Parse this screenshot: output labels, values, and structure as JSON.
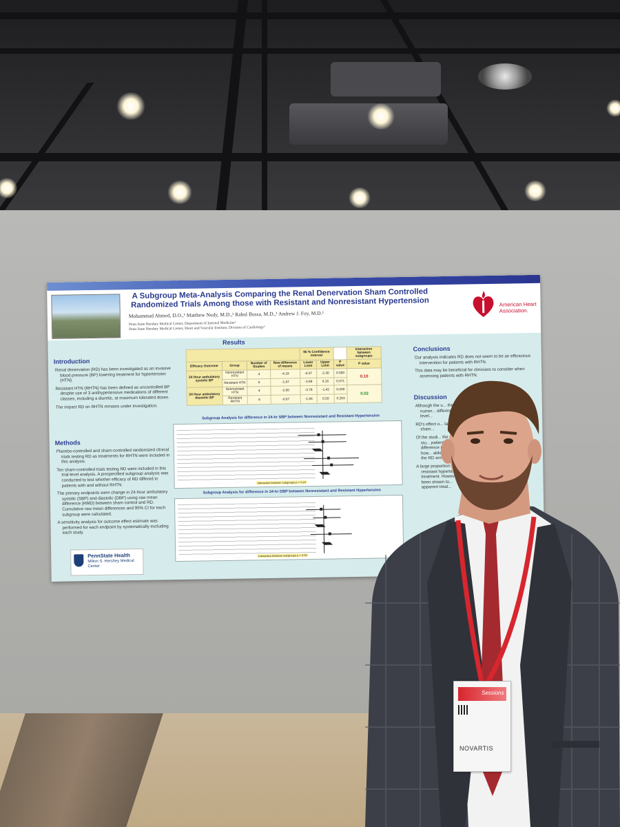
{
  "poster": {
    "title": "A Subgroup Meta-Analysis Comparing the Renal Denervation Sham Controlled Randomized Trials Among those with Resistant and Nonresistant Hypertension",
    "authors": "Mohammad Ahmed, D.O.,¹ Matthew Nudy, M.D.,² Rahul Bussa, M.D.,¹ Andrew J. Foy, M.D.²",
    "affiliation_1": "Penn State Hershey Medical Center, Department of Internal Medicine¹",
    "affiliation_2": "Penn State Hershey Medical Center, Heart and Vascular Institute, Division of Cardiology²",
    "aha_logo_text": "American Heart Association.",
    "results_heading": "Results",
    "introduction": {
      "heading": "Introduction",
      "bullets": [
        "Renal denervation (RD) has been investigated as an invasive blood pressure (BP) lowering treatment for hypertension (HTN).",
        "Resistant HTN (RHTN) has been defined as uncontrolled BP despite use of 3 antihypertensive medications of different classes, including a diuretic, at maximum tolerated doses.",
        "The impact RD on RHTN remains under investigation."
      ]
    },
    "methods": {
      "heading": "Methods",
      "bullets": [
        "Placebo-controlled and sham-controlled randomized clinical trials testing RD as treatments for RHTN were included in this analysis.",
        "Ten sham-controlled trials testing RD were included in this trial-level analysis. A prespecified subgroup analysis was conducted to test whether efficacy of RD differed in patients with and without RHTN.",
        "The primary endpoints were change in 24-hour ambulatory systolic (SBP) and diastolic (DBP) using raw mean difference (RMD) between sham control and RD. Cumulative raw mean differences and 95% CI for each subgroup were calculated.",
        "A sensitivity analysis for outcome effect estimate was performed for each endpoint by systematically excluding each study."
      ]
    },
    "conclusions": {
      "heading": "Conclusions",
      "bullets": [
        "Our analysis indicates RD does not seem to be an efficacious intervention for patients with RHTN.",
        "This data may be beneficial for clinicians to consider when assessing patients with RHTN."
      ]
    },
    "discussion": {
      "heading": "Discussion",
      "bullets": [
        "Although the u... there is numer... differing level...",
        "RD's effect o... lack of sham...",
        "Of the studi... the only stu... patients. A t... difference in... change, how... aldosterone in... the RD arm.",
        "A large proportion... resistant hypertens... treatment. Howeve... been shown to... apparent treat..."
      ]
    },
    "table": {
      "header_ci": "95 % Confidence interval",
      "header_interaction": "Interaction between subgroups",
      "columns": [
        "Efficacy Outcome",
        "Group",
        "Number of Studies",
        "Raw difference of means",
        "Lower Limit",
        "Upper Limit",
        "P value",
        "P value"
      ],
      "rows": [
        {
          "outcome": "24 Hour ambulatory systolic BP",
          "group": "Nonresistant HTN",
          "n": "4",
          "rmd": "-4.19",
          "lower": "-6.07",
          "upper": "-2.30",
          "p": "0.000",
          "pint": "0.10"
        },
        {
          "outcome": "",
          "group": "Resistant HTN",
          "n": "6",
          "rmd": "-1.87",
          "lower": "-3.89",
          "upper": "0.16",
          "p": "0.071",
          "pint": ""
        },
        {
          "outcome": "24 Hour ambulatory diastolic BP",
          "group": "Nonresistant HTN",
          "n": "4",
          "rmd": "-2.60",
          "lower": "-3.78",
          "upper": "-1.42",
          "p": "0.000",
          "pint": "0.02"
        },
        {
          "outcome": "",
          "group": "Resistant RHTN",
          "n": "6",
          "rmd": "-0.67",
          "lower": "-1.84",
          "upper": "0.50",
          "p": "0.263",
          "pint": ""
        }
      ]
    },
    "plot_sbp_title": "Subgroup Analysis for difference in 24-hr SBP between Nonresistant and Resistant Hypertension",
    "plot_dbp_title": "Subgroup Analysis for difference in 24-hr DBP between Nonresistant and Resistant Hypertension",
    "plot_sbp_note": "Interaction between subgroups p = 0.10",
    "plot_dbp_note": "Interaction between subgroups p = 0.02",
    "institution_name": "PennState Health",
    "institution_sub": "Milton S. Hershey Medical Center"
  },
  "badge": {
    "session_text": "Sessions",
    "sponsor": "NOVARTIS"
  },
  "colors": {
    "poster_bg": "#d6ecec",
    "title_blue": "#2a3b8f",
    "aha_red": "#c8102e",
    "lanyard_red": "#d7262e"
  }
}
